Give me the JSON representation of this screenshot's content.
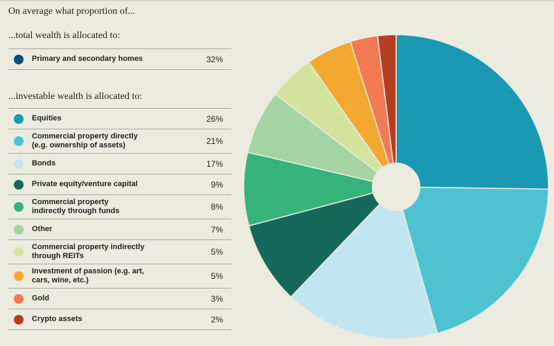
{
  "heading": "On average what proportion of...",
  "total_heading": "...total wealth is allocated to:",
  "invest_heading": "...investable wealth is allocated to:",
  "chart_data": {
    "type": "pie",
    "donut_hole": true,
    "total_wealth": [
      {
        "label": "Primary and secondary homes",
        "value": 32,
        "display": "32%",
        "color": "#0b4f73"
      }
    ],
    "investable_wealth": [
      {
        "label": "Equities",
        "value": 26,
        "display": "26%",
        "color": "#1a99b4"
      },
      {
        "label": "Commercial property directly\n(e.g. ownership of assets)",
        "value": 21,
        "display": "21%",
        "color": "#4fc2d1"
      },
      {
        "label": "Bonds",
        "value": 17,
        "display": "17%",
        "color": "#c2e6f1"
      },
      {
        "label": "Private equity/venture capital",
        "value": 9,
        "display": "9%",
        "color": "#16695a"
      },
      {
        "label": "Commercial property\nindirectly through funds",
        "value": 8,
        "display": "8%",
        "color": "#35b37a"
      },
      {
        "label": "Other",
        "value": 7,
        "display": "7%",
        "color": "#a5d5a4"
      },
      {
        "label": "Commercial property indirectly\nthrough REITs",
        "value": 5,
        "display": "5%",
        "color": "#d4e49f"
      },
      {
        "label": "Investment of passion (e.g. art,\ncars, wine, etc.)",
        "value": 5,
        "display": "5%",
        "color": "#f5a830"
      },
      {
        "label": "Gold",
        "value": 3,
        "display": "3%",
        "color": "#f27a52"
      },
      {
        "label": "Crypto assets",
        "value": 2,
        "display": "2%",
        "color": "#b53e22"
      }
    ]
  }
}
